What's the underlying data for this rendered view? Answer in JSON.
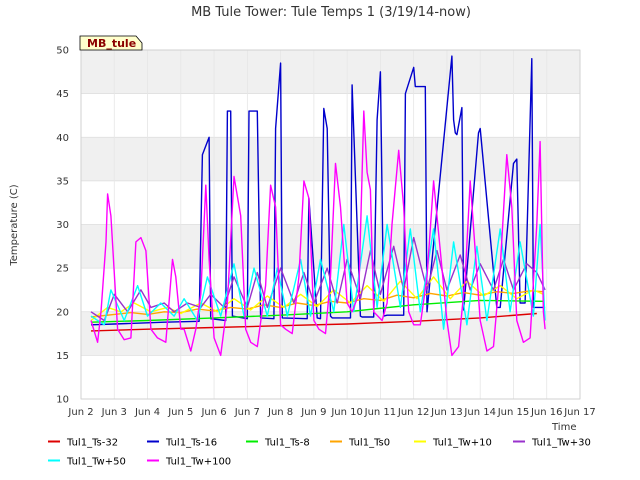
{
  "chart_data": {
    "type": "line",
    "title": "MB Tule Tower: Tule Temps 1 (3/19/14-now)",
    "ylabel": "Temperature (C)",
    "xlabel": "Time",
    "ylim": [
      10,
      50
    ],
    "xlim": [
      2,
      17
    ],
    "yticks": [
      10,
      15,
      20,
      25,
      30,
      35,
      40,
      45,
      50
    ],
    "xticks": [
      {
        "v": 2,
        "label": "Jun 2"
      },
      {
        "v": 3,
        "label": "Jun 3"
      },
      {
        "v": 4,
        "label": "Jun 4"
      },
      {
        "v": 5,
        "label": "Jun 5"
      },
      {
        "v": 6,
        "label": "Jun 6"
      },
      {
        "v": 7,
        "label": "Jun 7"
      },
      {
        "v": 8,
        "label": "Jun 8"
      },
      {
        "v": 9,
        "label": "Jun 9"
      },
      {
        "v": 10,
        "label": "Jun 10"
      },
      {
        "v": 11,
        "label": "Jun 11"
      },
      {
        "v": 12,
        "label": "Jun 12"
      },
      {
        "v": 13,
        "label": "Jun 13"
      },
      {
        "v": 14,
        "label": "Jun 14"
      },
      {
        "v": 15,
        "label": "Jun 15"
      },
      {
        "v": 16,
        "label": "Jun 16"
      },
      {
        "v": 17,
        "label": "Jun 17"
      }
    ],
    "badge": "MB_tule",
    "series": [
      {
        "name": "Tul1_Ts-32",
        "color": "#dd0000",
        "x": [
          2.3,
          4,
          6,
          8,
          10,
          12,
          14,
          15.7
        ],
        "y": [
          17.8,
          18.0,
          18.2,
          18.4,
          18.6,
          18.9,
          19.3,
          19.8
        ]
      },
      {
        "name": "Tul1_Ts-16",
        "color": "#0000cc",
        "x": [
          2.3,
          3.0,
          4.5,
          5.55,
          5.65,
          5.85,
          5.9,
          6.35,
          6.4,
          6.5,
          6.55,
          7.0,
          7.05,
          7.3,
          7.4,
          7.8,
          7.85,
          8.0,
          8.05,
          8.8,
          8.85,
          9.1,
          9.2,
          9.3,
          9.4,
          9.5,
          9.55,
          10.1,
          10.15,
          10.4,
          10.45,
          10.8,
          10.9,
          11.0,
          11.1,
          11.2,
          11.7,
          11.75,
          12.0,
          12.05,
          12.35,
          12.4,
          13.15,
          13.2,
          13.25,
          13.3,
          13.45,
          13.5,
          13.95,
          14.0,
          14.5,
          14.6,
          15.0,
          15.1,
          15.2,
          15.35,
          15.55,
          15.6,
          15.95
        ],
        "y": [
          18.5,
          18.6,
          18.8,
          18.9,
          38,
          40,
          19.2,
          19.0,
          43,
          43,
          19.5,
          19.2,
          43,
          43,
          19.3,
          19.2,
          41,
          48.5,
          19.3,
          19.2,
          33,
          19.3,
          19.2,
          43.3,
          41,
          19.5,
          19.3,
          19.3,
          46,
          19.5,
          19.4,
          19.4,
          42,
          47.5,
          19.5,
          19.6,
          19.6,
          45,
          48,
          45.8,
          45.8,
          20,
          49.3,
          42,
          40.5,
          40.3,
          43.4,
          20.2,
          40.5,
          41,
          20.5,
          20.5,
          37,
          37.5,
          21,
          21,
          49,
          20.5,
          20.5
        ]
      },
      {
        "name": "Tul1_Ts-8",
        "color": "#00ee00",
        "x": [
          2.3,
          4,
          6,
          8,
          10,
          12,
          14,
          15.9
        ],
        "y": [
          18.8,
          19.0,
          19.3,
          19.6,
          20.0,
          20.8,
          21.3,
          21.2
        ]
      },
      {
        "name": "Tul1_Ts0",
        "color": "#ffa500",
        "x": [
          2.3,
          3.0,
          3.5,
          4.0,
          4.5,
          5.0,
          5.5,
          6.0,
          6.5,
          7.0,
          7.5,
          8.0,
          8.5,
          9.0,
          9.5,
          10.0,
          10.5,
          11.0,
          11.5,
          12.0,
          12.5,
          13.0,
          13.5,
          14.0,
          14.5,
          15.0,
          15.5,
          15.9
        ],
        "y": [
          19.4,
          19.7,
          19.9,
          19.7,
          20.0,
          19.9,
          20.3,
          20.1,
          20.5,
          20.3,
          20.8,
          20.5,
          21.0,
          20.7,
          21.2,
          21.0,
          21.5,
          21.3,
          21.9,
          21.6,
          22.1,
          21.8,
          22.2,
          21.9,
          22.3,
          22.1,
          22.4,
          22.3
        ]
      },
      {
        "name": "Tul1_Tw+10",
        "color": "#ffff00",
        "x": [
          2.3,
          2.8,
          3.2,
          3.6,
          4.1,
          4.6,
          5.0,
          5.6,
          6.1,
          6.6,
          7.1,
          7.6,
          8.1,
          8.6,
          9.1,
          9.6,
          10.1,
          10.6,
          11.1,
          11.6,
          12.1,
          12.6,
          13.1,
          13.6,
          14.1,
          14.6,
          15.1,
          15.6,
          15.9
        ],
        "y": [
          19.0,
          20.5,
          20.0,
          21.0,
          20.0,
          20.5,
          19.8,
          21.0,
          20.0,
          21.5,
          20.2,
          21.8,
          20.5,
          22.0,
          20.6,
          22.5,
          21.0,
          23.0,
          21.2,
          23.5,
          21.5,
          24.0,
          21.5,
          23.5,
          21.8,
          23.0,
          21.5,
          22.5,
          22.0
        ]
      },
      {
        "name": "Tul1_Tw+30",
        "color": "#9932cc",
        "x": [
          2.3,
          2.7,
          3.0,
          3.4,
          3.8,
          4.1,
          4.5,
          4.8,
          5.2,
          5.6,
          5.9,
          6.3,
          6.6,
          7.0,
          7.3,
          7.6,
          8.0,
          8.4,
          8.7,
          9.0,
          9.4,
          9.7,
          10.0,
          10.4,
          10.7,
          11.0,
          11.4,
          11.7,
          12.0,
          12.4,
          12.7,
          13.0,
          13.4,
          13.7,
          14.0,
          14.4,
          14.7,
          15.0,
          15.4,
          15.7,
          15.95
        ],
        "y": [
          20,
          19,
          22,
          20,
          22.5,
          20.5,
          21,
          20,
          21,
          20.5,
          22,
          20.5,
          24,
          20.5,
          24.5,
          20.5,
          25,
          21,
          24.5,
          21,
          25,
          21,
          26,
          21.5,
          27,
          22,
          27.5,
          22.5,
          28.5,
          22.5,
          27,
          22.5,
          26.5,
          22.5,
          25.5,
          22.5,
          26,
          22.5,
          25.5,
          24.5,
          22.5
        ]
      },
      {
        "name": "Tul1_Tw+50",
        "color": "#00ffff",
        "x": [
          2.3,
          2.7,
          2.9,
          3.3,
          3.7,
          4.0,
          4.4,
          4.8,
          5.1,
          5.5,
          5.8,
          6.2,
          6.6,
          6.9,
          7.2,
          7.6,
          7.9,
          8.2,
          8.6,
          8.9,
          9.2,
          9.6,
          9.9,
          10.2,
          10.6,
          10.9,
          11.2,
          11.6,
          11.9,
          12.2,
          12.6,
          12.9,
          13.2,
          13.6,
          13.9,
          14.2,
          14.6,
          14.9,
          15.2,
          15.6,
          15.8,
          15.95
        ],
        "y": [
          19.5,
          18.5,
          22.5,
          19,
          23,
          19.5,
          21,
          19.5,
          21.5,
          19,
          24,
          19.5,
          25.5,
          19.5,
          25,
          19.5,
          25,
          19.5,
          26,
          19.5,
          26,
          20,
          30,
          20,
          31,
          20.5,
          30,
          20.5,
          29.5,
          20,
          29.5,
          18,
          28,
          18.5,
          27.5,
          19,
          29.5,
          20,
          28,
          19.5,
          30,
          19
        ]
      },
      {
        "name": "Tul1_Tw+100",
        "color": "#ff00ff",
        "x": [
          2.3,
          2.5,
          2.6,
          2.75,
          2.8,
          2.9,
          3.1,
          3.3,
          3.5,
          3.65,
          3.8,
          3.95,
          4.1,
          4.3,
          4.55,
          4.75,
          4.85,
          5.0,
          5.1,
          5.3,
          5.45,
          5.6,
          5.75,
          5.85,
          6.0,
          6.2,
          6.4,
          6.6,
          6.8,
          6.95,
          7.1,
          7.3,
          7.55,
          7.7,
          7.85,
          8.0,
          8.15,
          8.35,
          8.55,
          8.7,
          8.85,
          9.0,
          9.15,
          9.35,
          9.5,
          9.65,
          9.8,
          10.0,
          10.15,
          10.35,
          10.5,
          10.6,
          10.7,
          10.8,
          11.05,
          11.2,
          11.35,
          11.55,
          11.7,
          11.85,
          12.0,
          12.2,
          12.4,
          12.6,
          12.8,
          13.0,
          13.15,
          13.35,
          13.55,
          13.7,
          13.85,
          14.0,
          14.2,
          14.4,
          14.6,
          14.8,
          14.95,
          15.1,
          15.3,
          15.5,
          15.7,
          15.8,
          15.9,
          15.95
        ],
        "y": [
          19,
          16.5,
          20,
          28,
          33.5,
          31,
          18,
          16.8,
          17,
          28,
          28.5,
          27,
          18,
          17,
          16.5,
          26,
          24,
          18,
          18,
          15.5,
          18,
          22,
          34.5,
          26,
          17,
          15,
          21,
          35.5,
          31,
          18,
          16.5,
          16,
          23,
          34.5,
          32,
          18.5,
          18,
          17.5,
          24,
          35,
          33,
          19,
          18,
          17.5,
          24,
          37,
          32,
          21,
          20,
          22,
          43,
          36,
          34,
          20,
          19,
          21,
          30,
          38.5,
          32,
          20,
          18.5,
          18.5,
          24,
          35,
          27,
          19,
          15,
          16,
          24,
          35,
          27,
          19,
          15.5,
          16,
          25,
          38,
          32,
          19,
          16.5,
          17,
          30,
          39.5,
          20,
          18
        ]
      }
    ]
  }
}
